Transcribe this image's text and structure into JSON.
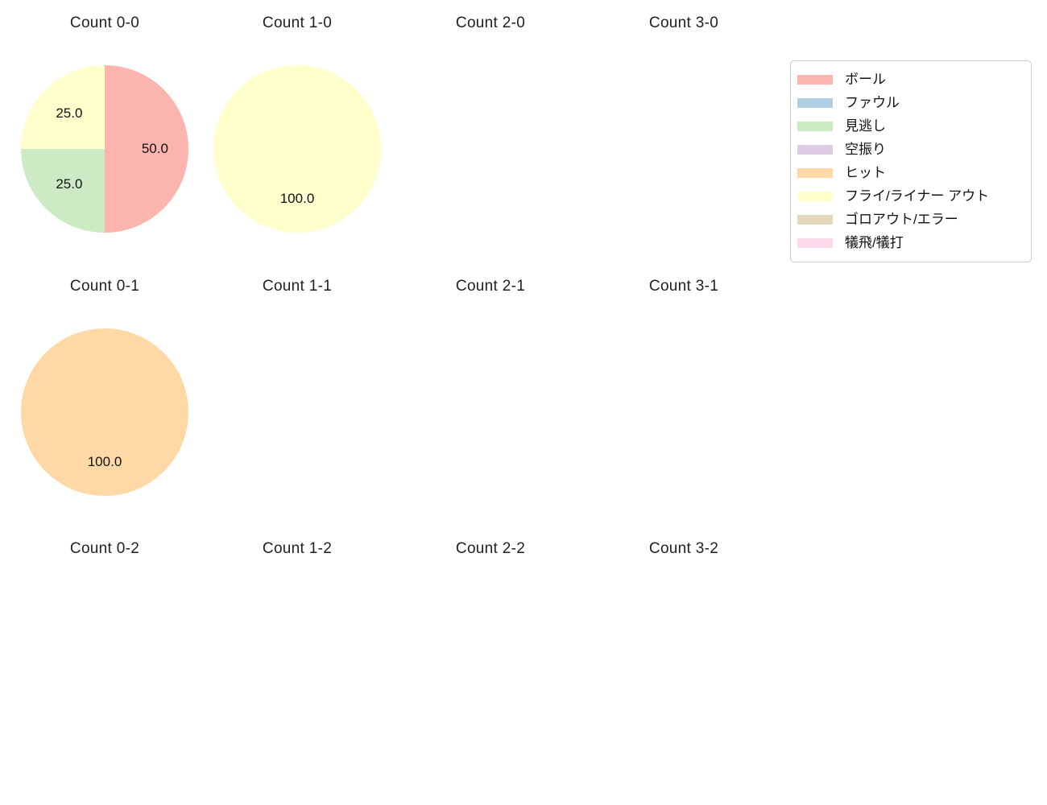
{
  "figure": {
    "background": "#ffffff",
    "text_color": "#1f1f1f"
  },
  "legend": {
    "position": "upper-right",
    "border_color": "#cccccc",
    "items": [
      {
        "label": "ボール",
        "color": "#fbb4ae"
      },
      {
        "label": "ファウル",
        "color": "#b3cde3"
      },
      {
        "label": "見逃し",
        "color": "#ccebc5"
      },
      {
        "label": "空振り",
        "color": "#decbe4"
      },
      {
        "label": "ヒット",
        "color": "#fed9a6"
      },
      {
        "label": "フライ/ライナー アウト",
        "color": "#ffffcc"
      },
      {
        "label": "ゴロアウト/エラー",
        "color": "#e5d8bd"
      },
      {
        "label": "犠飛/犠打",
        "color": "#fddaec"
      }
    ]
  },
  "chart_data": {
    "type": "pie",
    "grid": {
      "rows": 3,
      "cols": 4
    },
    "start_angle_deg": 90,
    "direction": "clockwise",
    "pct_distance": 0.6,
    "value_unit": "percent",
    "subplots": [
      {
        "title": "Count 0-0",
        "slices": [
          {
            "category": "ボール",
            "value": 50.0,
            "text": "50.0",
            "color": "#fbb4ae"
          },
          {
            "category": "見逃し",
            "value": 25.0,
            "text": "25.0",
            "color": "#ccebc5"
          },
          {
            "category": "フライ/ライナー アウト",
            "value": 25.0,
            "text": "25.0",
            "color": "#ffffcc"
          }
        ]
      },
      {
        "title": "Count 1-0",
        "slices": [
          {
            "category": "フライ/ライナー アウト",
            "value": 100.0,
            "text": "100.0",
            "color": "#ffffcc"
          }
        ]
      },
      {
        "title": "Count 2-0",
        "slices": []
      },
      {
        "title": "Count 3-0",
        "slices": []
      },
      {
        "title": "Count 0-1",
        "slices": [
          {
            "category": "ヒット",
            "value": 100.0,
            "text": "100.0",
            "color": "#fed9a6"
          }
        ]
      },
      {
        "title": "Count 1-1",
        "slices": []
      },
      {
        "title": "Count 2-1",
        "slices": []
      },
      {
        "title": "Count 3-1",
        "slices": []
      },
      {
        "title": "Count 0-2",
        "slices": []
      },
      {
        "title": "Count 1-2",
        "slices": []
      },
      {
        "title": "Count 2-2",
        "slices": []
      },
      {
        "title": "Count 3-2",
        "slices": []
      }
    ]
  }
}
